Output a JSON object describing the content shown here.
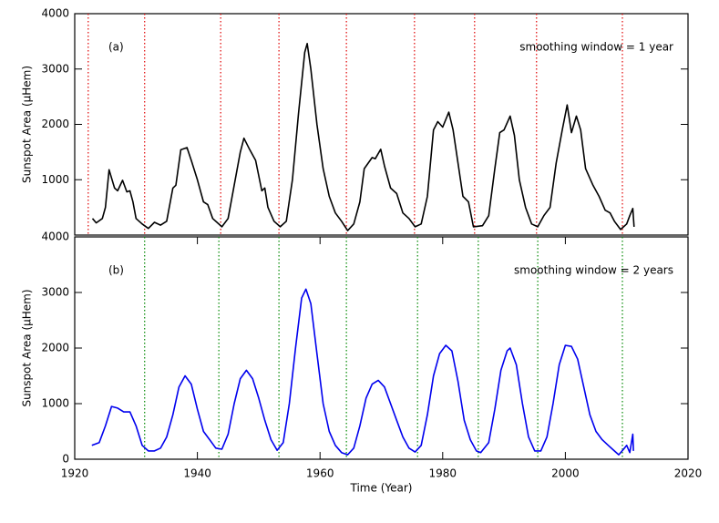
{
  "chart_data": [
    {
      "type": "line",
      "label": "(a)",
      "annotation": "smoothing window = 1 year",
      "y_label": "Sunspot Area (μHem)",
      "xlim": [
        1920,
        2020
      ],
      "ylim": [
        0,
        4000
      ],
      "yticks": [
        1000,
        2000,
        3000,
        4000
      ],
      "x": [
        1922.9,
        1923.5,
        1924.5,
        1925,
        1925.6,
        1926.5,
        1927,
        1927.8,
        1928.5,
        1929,
        1929.5,
        1930,
        1931,
        1932,
        1933,
        1934,
        1935,
        1936,
        1936.5,
        1937.3,
        1938.3,
        1939,
        1940,
        1941,
        1941.7,
        1942.5,
        1944,
        1945,
        1946,
        1947,
        1947.6,
        1948.5,
        1949.5,
        1950.5,
        1951,
        1951.5,
        1952.5,
        1953.5,
        1954.5,
        1955.5,
        1956.5,
        1957.5,
        1957.9,
        1958.5,
        1959.5,
        1960.5,
        1961.5,
        1962.5,
        1963.5,
        1964.5,
        1965.5,
        1966.5,
        1967.2,
        1968.5,
        1969,
        1969.9,
        1970.5,
        1971.5,
        1972.5,
        1973.5,
        1974.5,
        1975.5,
        1976.5,
        1977.5,
        1978.5,
        1979.2,
        1980,
        1981,
        1981.7,
        1982.5,
        1983.3,
        1984.2,
        1985,
        1986.5,
        1987.5,
        1988.5,
        1989.3,
        1990,
        1991,
        1991.7,
        1992.5,
        1993.5,
        1994.5,
        1995.5,
        1996.5,
        1997.5,
        1998.5,
        1999.5,
        2000.3,
        2001,
        2001.8,
        2002.5,
        2003.3,
        2004.5,
        2005.5,
        2006.5,
        2007.3,
        2008,
        2009,
        2010,
        2010.5,
        2011,
        2011.2
      ],
      "series": [
        {
          "color": "#000000",
          "values": [
            300,
            220,
            300,
            500,
            1180,
            850,
            800,
            990,
            780,
            800,
            600,
            300,
            200,
            120,
            230,
            180,
            250,
            850,
            900,
            1540,
            1580,
            1350,
            1000,
            600,
            550,
            300,
            150,
            300,
            900,
            1500,
            1750,
            1550,
            1350,
            800,
            850,
            500,
            250,
            150,
            250,
            1000,
            2200,
            3300,
            3460,
            3000,
            2000,
            1200,
            700,
            400,
            250,
            80,
            200,
            600,
            1200,
            1400,
            1380,
            1550,
            1250,
            850,
            750,
            400,
            300,
            150,
            200,
            700,
            1900,
            2050,
            1950,
            2220,
            1900,
            1300,
            700,
            600,
            150,
            170,
            350,
            1200,
            1850,
            1900,
            2150,
            1800,
            1000,
            500,
            200,
            150,
            350,
            500,
            1300,
            1900,
            2350,
            1850,
            2150,
            1900,
            1200,
            900,
            700,
            450,
            400,
            250,
            100,
            200,
            350,
            480,
            150
          ]
        }
      ],
      "minima": {
        "color": "#e00000",
        "x": [
          1922.2,
          1931.4,
          1943.8,
          1953.3,
          1964.3,
          1975.4,
          1985.2,
          1995.3,
          2009.3
        ]
      }
    },
    {
      "type": "line",
      "label": "(b)",
      "annotation": "smoothing window = 2 years",
      "y_label": "Sunspot Area (μHem)",
      "x_label": "Time (Year)",
      "xlim": [
        1920,
        2020
      ],
      "xticks": [
        1920,
        1940,
        1960,
        1980,
        2000,
        2020
      ],
      "ylim": [
        0,
        4000
      ],
      "yticks": [
        0,
        1000,
        2000,
        3000,
        4000
      ],
      "x": [
        1922.8,
        1924,
        1925,
        1926,
        1927,
        1928,
        1929,
        1930,
        1931,
        1932,
        1933,
        1934,
        1935,
        1936,
        1937,
        1938,
        1939,
        1940,
        1941,
        1942,
        1943,
        1944,
        1945,
        1946,
        1947,
        1948,
        1949,
        1950,
        1951,
        1952,
        1953,
        1954,
        1955,
        1956,
        1957,
        1957.7,
        1958.5,
        1959.5,
        1960.5,
        1961.5,
        1962.5,
        1963.5,
        1964.5,
        1965.5,
        1966.5,
        1967.5,
        1968.5,
        1969.5,
        1970.5,
        1971.5,
        1972.5,
        1973.5,
        1974.5,
        1975.5,
        1976.5,
        1977.5,
        1978.5,
        1979.5,
        1980.5,
        1981.5,
        1982.5,
        1983.5,
        1984.5,
        1985.5,
        1986.2,
        1987.5,
        1988.5,
        1989.5,
        1990.5,
        1991,
        1992,
        1993,
        1994,
        1995,
        1996,
        1997,
        1998,
        1999,
        2000,
        2001,
        2002,
        2003,
        2004,
        2005,
        2006,
        2007,
        2008,
        2008.7,
        2009.5,
        2010,
        2010.5,
        2011,
        2011.1
      ],
      "series": [
        {
          "color": "#0000ee",
          "values": [
            250,
            300,
            600,
            950,
            920,
            850,
            850,
            600,
            250,
            150,
            150,
            200,
            400,
            800,
            1300,
            1500,
            1350,
            900,
            500,
            350,
            200,
            180,
            450,
            1000,
            1450,
            1600,
            1450,
            1100,
            700,
            350,
            160,
            300,
            1000,
            2000,
            2900,
            3060,
            2800,
            1900,
            1000,
            500,
            250,
            120,
            80,
            200,
            600,
            1100,
            1350,
            1420,
            1300,
            1000,
            700,
            400,
            200,
            130,
            250,
            800,
            1500,
            1900,
            2050,
            1950,
            1400,
            700,
            350,
            150,
            120,
            300,
            900,
            1600,
            1950,
            2000,
            1700,
            1000,
            400,
            150,
            150,
            400,
            1000,
            1700,
            2050,
            2030,
            1800,
            1300,
            800,
            500,
            350,
            250,
            150,
            80,
            180,
            250,
            120,
            450,
            150
          ]
        }
      ],
      "minima": {
        "color": "#008800",
        "x": [
          1931.4,
          1943.5,
          1953.3,
          1964.3,
          1975.9,
          1985.8,
          1995.5,
          2009.3
        ]
      }
    }
  ]
}
